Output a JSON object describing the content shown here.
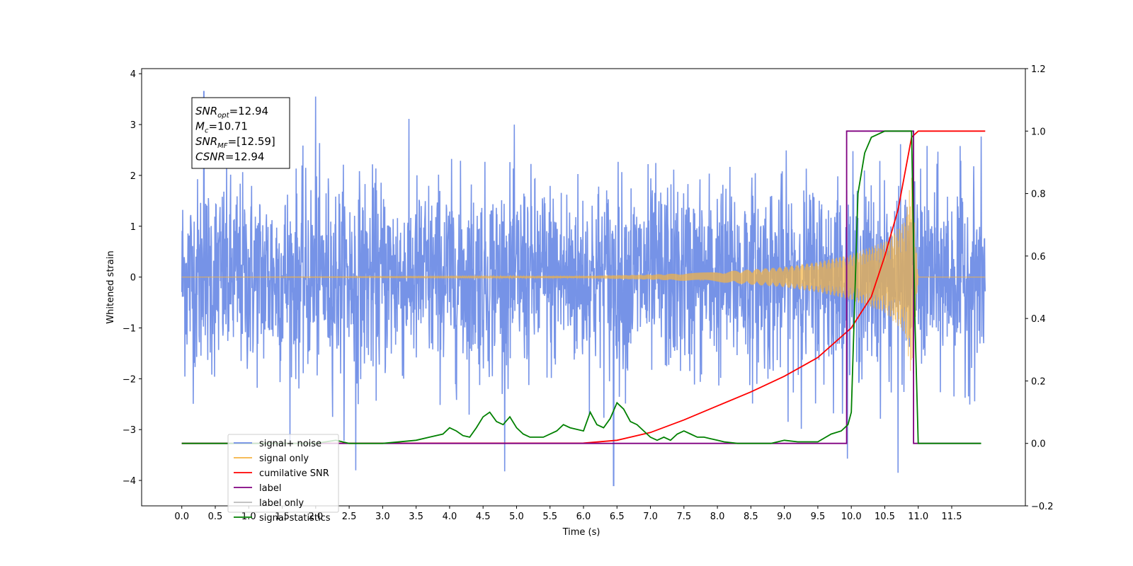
{
  "chart_data": {
    "type": "line",
    "xlabel": "Time (s)",
    "ylabel": "Whitened strain",
    "xlim": [
      -0.6,
      12.6
    ],
    "ylim": [
      -4.5,
      4.1
    ],
    "y2lim": [
      -0.2,
      1.2
    ],
    "grid": false,
    "x_ticks": [
      0.0,
      0.5,
      1.0,
      1.5,
      2.0,
      2.5,
      3.0,
      3.5,
      4.0,
      4.5,
      5.0,
      5.5,
      6.0,
      6.5,
      7.0,
      7.5,
      8.0,
      8.5,
      9.0,
      9.5,
      10.0,
      10.5,
      11.0,
      11.5
    ],
    "x_tick_labels": [
      "0.0",
      "0.5",
      "1.0",
      "1.5",
      "2.0",
      "2.5",
      "3.0",
      "3.5",
      "4.0",
      "4.5",
      "5.0",
      "5.5",
      "6.0",
      "6.5",
      "7.0",
      "7.5",
      "8.0",
      "8.5",
      "9.0",
      "9.5",
      "10.0",
      "10.5",
      "11.0",
      "11.5"
    ],
    "y_ticks": [
      4,
      3,
      2,
      1,
      0,
      -1,
      -2,
      -3,
      -4
    ],
    "y_tick_labels": [
      "4",
      "3",
      "2",
      "1",
      "0",
      "−1",
      "−2",
      "−3",
      "−4"
    ],
    "y2_ticks": [
      1.2,
      1.0,
      0.8,
      0.6,
      0.4,
      0.2,
      0.0,
      -0.2
    ],
    "y2_tick_labels": [
      "1.2",
      "1.0",
      "0.8",
      "0.6",
      "0.4",
      "0.2",
      "0.0",
      "−0.2"
    ],
    "legend_position": "lower-left",
    "series": [
      {
        "name": "signal+ noise",
        "axis": "left",
        "color": "#6f8de6",
        "description_values": {
          "x_range": [
            0,
            12
          ],
          "mean": 0,
          "typical_amplitude": 2.0,
          "peaks": [
            [
              0.33,
              3.65
            ],
            [
              2.0,
              3.55
            ],
            [
              6.45,
              -4.1
            ],
            [
              10.7,
              -3.85
            ],
            [
              2.6,
              -3.8
            ]
          ]
        }
      },
      {
        "name": "signal only",
        "axis": "left",
        "color": "#f5b342",
        "description_values": {
          "x_range": [
            0,
            12
          ],
          "envelope": [
            [
              0,
              0.0
            ],
            [
              6.0,
              0.02
            ],
            [
              7.0,
              0.05
            ],
            [
              8.0,
              0.1
            ],
            [
              9.0,
              0.2
            ],
            [
              9.5,
              0.3
            ],
            [
              10.0,
              0.45
            ],
            [
              10.5,
              0.7
            ],
            [
              10.8,
              1.1
            ],
            [
              10.9,
              2.0
            ],
            [
              11.0,
              0.0
            ],
            [
              12.0,
              0.0
            ]
          ]
        }
      },
      {
        "name": "cumilative SNR",
        "axis": "right",
        "color": "#ff0000",
        "x": [
          0,
          6.0,
          6.5,
          7.0,
          7.5,
          8.0,
          8.5,
          9.0,
          9.5,
          10.0,
          10.3,
          10.5,
          10.7,
          10.9,
          11.0,
          12.0
        ],
        "y": [
          0.0,
          0.001,
          0.01,
          0.035,
          0.075,
          0.12,
          0.165,
          0.215,
          0.275,
          0.37,
          0.47,
          0.6,
          0.75,
          0.98,
          1.0,
          1.0
        ]
      },
      {
        "name": "label",
        "axis": "right",
        "color": "#800080",
        "x": [
          0,
          9.93,
          9.93,
          10.93,
          10.93,
          11.93
        ],
        "y": [
          0,
          0,
          1,
          1,
          0,
          0
        ]
      },
      {
        "name": "label only",
        "axis": "right",
        "color": "#bbbbbb",
        "x": [],
        "y": []
      },
      {
        "name": "signal statistics",
        "axis": "right",
        "color": "#008000",
        "x": [
          0,
          2.0,
          2.3,
          2.5,
          3.0,
          3.5,
          3.7,
          3.9,
          4.0,
          4.1,
          4.2,
          4.3,
          4.4,
          4.5,
          4.6,
          4.7,
          4.8,
          4.9,
          5.0,
          5.1,
          5.2,
          5.4,
          5.6,
          5.7,
          5.8,
          6.0,
          6.1,
          6.2,
          6.3,
          6.4,
          6.5,
          6.6,
          6.7,
          6.8,
          6.9,
          7.0,
          7.1,
          7.2,
          7.3,
          7.4,
          7.5,
          7.6,
          7.7,
          7.8,
          7.9,
          8.0,
          8.1,
          8.3,
          8.8,
          9.0,
          9.2,
          9.5,
          9.7,
          9.85,
          9.95,
          10.0,
          10.05,
          10.1,
          10.2,
          10.3,
          10.5,
          10.7,
          10.9,
          10.95,
          11.0,
          11.2,
          11.94
        ],
        "y": [
          0,
          0,
          0.01,
          0,
          0,
          0.01,
          0.02,
          0.03,
          0.05,
          0.04,
          0.025,
          0.02,
          0.05,
          0.085,
          0.1,
          0.07,
          0.06,
          0.085,
          0.05,
          0.03,
          0.02,
          0.02,
          0.04,
          0.06,
          0.05,
          0.04,
          0.1,
          0.06,
          0.05,
          0.08,
          0.13,
          0.11,
          0.07,
          0.06,
          0.04,
          0.02,
          0.01,
          0.02,
          0.01,
          0.03,
          0.04,
          0.03,
          0.02,
          0.02,
          0.015,
          0.01,
          0.005,
          0,
          0,
          0.01,
          0.005,
          0.005,
          0.03,
          0.04,
          0.06,
          0.1,
          0.45,
          0.8,
          0.93,
          0.98,
          1.0,
          1.0,
          1.0,
          0.4,
          0,
          0,
          0
        ]
      }
    ],
    "annotation": {
      "lines": [
        {
          "label": "SNR",
          "sub": "opt",
          "value": "=12.94"
        },
        {
          "label": "M",
          "sub": "c",
          "value": "=10.71"
        },
        {
          "label": "SNR",
          "sub": "MF",
          "value": "=[12.59]"
        },
        {
          "label": "CSNR",
          "sub": "",
          "value": "=12.94"
        }
      ]
    }
  }
}
